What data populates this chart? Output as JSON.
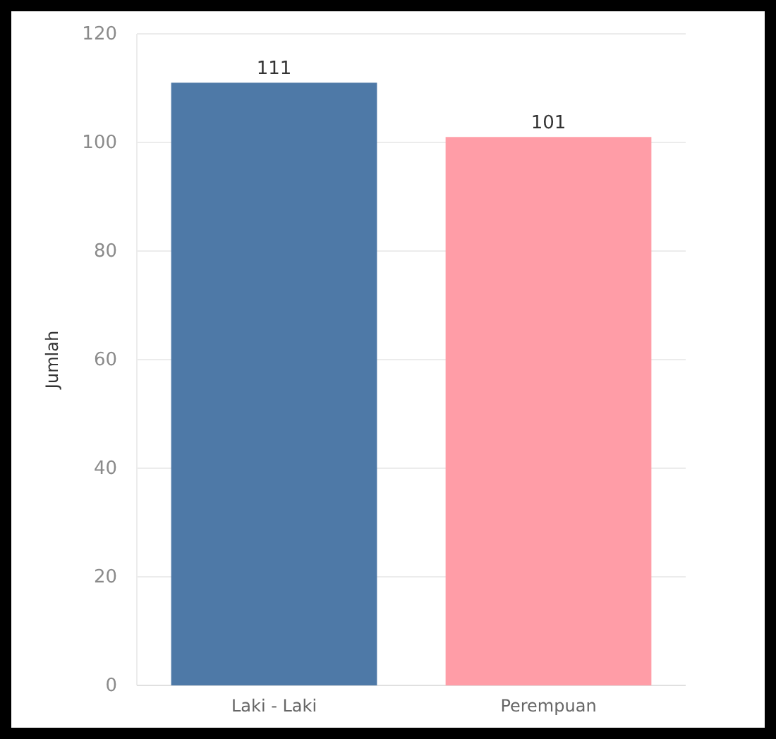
{
  "chart_data": {
    "type": "bar",
    "ylabel": "Jumlah",
    "categories": [
      "Laki - Laki",
      "Perempuan"
    ],
    "values": [
      111,
      101
    ],
    "colors": [
      "#4e79a7",
      "#ff9da7"
    ],
    "ylim": [
      0,
      120
    ],
    "yticks": [
      0,
      20,
      40,
      60,
      80,
      100,
      120
    ],
    "grid": "y",
    "data_labels": true
  }
}
